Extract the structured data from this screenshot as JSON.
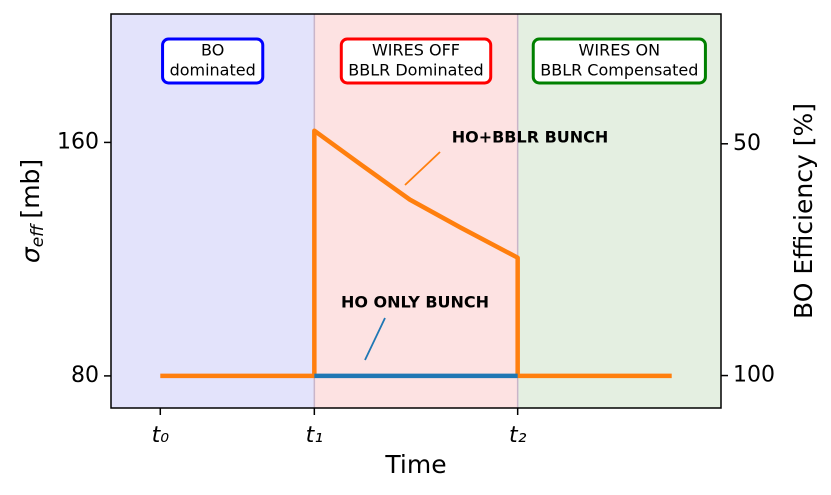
{
  "chart_data": {
    "type": "line",
    "x_label": "Time",
    "y_label": {
      "symbol": "σ",
      "subscript": "eff",
      "unit": "[mb]"
    },
    "y2_label": "BO Efficiency [%]",
    "xlim": [
      -0.32,
      3.64
    ],
    "xticks": [
      {
        "value": 0,
        "label": "t₀"
      },
      {
        "value": 1,
        "label": "t₁"
      },
      {
        "value": 2.32,
        "label": "t₂"
      }
    ],
    "ylim": [
      69,
      204
    ],
    "yticks": [
      80,
      160
    ],
    "y2lim": [
      107,
      22
    ],
    "y2ticks": [
      100,
      50
    ],
    "regions": [
      {
        "xlim": [
          -0.32,
          1
        ],
        "color": "#e3e3fb",
        "label": [
          "BO",
          "dominated"
        ],
        "label_color": "#0000ff"
      },
      {
        "xlim": [
          1,
          2.32
        ],
        "color": "#fde2e2",
        "label": [
          "WIRES OFF",
          "BBLR Dominated"
        ],
        "label_color": "#ff0000"
      },
      {
        "xlim": [
          2.32,
          3.64
        ],
        "color": "#e4efe1",
        "label": [
          "WIRES ON",
          "BBLR Compensated"
        ],
        "label_color": "#008000"
      }
    ],
    "series": [
      {
        "name": "HO+BBLR BUNCH",
        "color": "#ff7f0e",
        "x": [
          0,
          1,
          1,
          1.3,
          1.62,
          1.95,
          2.32,
          2.32,
          3.32
        ],
        "values": [
          80,
          80,
          164,
          152.5,
          140.4,
          130.8,
          120.5,
          80,
          80
        ]
      },
      {
        "name": "HO ONLY BUNCH",
        "color": "#1f77b4",
        "x": [
          1,
          2.32
        ],
        "values": [
          80,
          80
        ]
      }
    ]
  }
}
